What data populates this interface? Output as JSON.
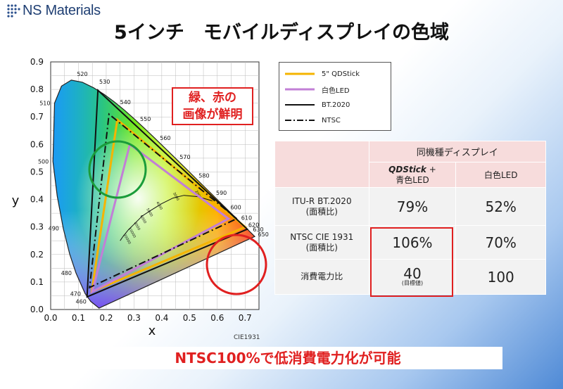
{
  "logo": {
    "name": "NS Materials",
    "icon": "dot-grid-logo-icon"
  },
  "title": "5インチ　モバイルディスプレイの色域",
  "chart_data": {
    "type": "scatter",
    "xlabel": "x",
    "ylabel": "y",
    "xlim": [
      0.0,
      0.75
    ],
    "ylim": [
      0.0,
      0.9
    ],
    "xticks": [
      "0.0",
      "0.1",
      "0.2",
      "0.3",
      "0.4",
      "0.5",
      "0.6",
      "0.7"
    ],
    "yticks": [
      "0.0",
      "0.1",
      "0.2",
      "0.3",
      "0.4",
      "0.5",
      "0.6",
      "0.7",
      "0.8",
      "0.9"
    ],
    "grid": true,
    "annotation": "CIE1931",
    "locus": [
      [
        0.1741,
        0.005
      ],
      [
        0.144,
        0.0297
      ],
      [
        0.1241,
        0.0578
      ],
      [
        0.0913,
        0.1327
      ],
      [
        0.0687,
        0.2007
      ],
      [
        0.0454,
        0.295
      ],
      [
        0.0235,
        0.4127
      ],
      [
        0.0082,
        0.5384
      ],
      [
        0.0139,
        0.7502
      ],
      [
        0.0389,
        0.812
      ],
      [
        0.0743,
        0.8338
      ],
      [
        0.1142,
        0.8262
      ],
      [
        0.1547,
        0.8059
      ],
      [
        0.1929,
        0.7816
      ],
      [
        0.2296,
        0.7543
      ],
      [
        0.2658,
        0.7243
      ],
      [
        0.3016,
        0.6923
      ],
      [
        0.3373,
        0.6589
      ],
      [
        0.3731,
        0.6245
      ],
      [
        0.4087,
        0.5896
      ],
      [
        0.4441,
        0.5547
      ],
      [
        0.4788,
        0.5202
      ],
      [
        0.5125,
        0.4866
      ],
      [
        0.5448,
        0.4544
      ],
      [
        0.5752,
        0.4242
      ],
      [
        0.6029,
        0.3965
      ],
      [
        0.627,
        0.3725
      ],
      [
        0.6482,
        0.3514
      ],
      [
        0.6658,
        0.334
      ],
      [
        0.6915,
        0.3083
      ],
      [
        0.7347,
        0.2653
      ]
    ],
    "wavelength_labels": [
      {
        "nm": "460",
        "x": 0.144,
        "y": 0.0297
      },
      {
        "nm": "470",
        "x": 0.1241,
        "y": 0.0578
      },
      {
        "nm": "480",
        "x": 0.0913,
        "y": 0.1327
      },
      {
        "nm": "490",
        "x": 0.0454,
        "y": 0.295
      },
      {
        "nm": "500",
        "x": 0.0082,
        "y": 0.5384
      },
      {
        "nm": "510",
        "x": 0.0139,
        "y": 0.7502
      },
      {
        "nm": "520",
        "x": 0.0743,
        "y": 0.8338
      },
      {
        "nm": "530",
        "x": 0.1547,
        "y": 0.8059
      },
      {
        "nm": "540",
        "x": 0.2296,
        "y": 0.7543
      },
      {
        "nm": "550",
        "x": 0.3016,
        "y": 0.6923
      },
      {
        "nm": "560",
        "x": 0.3731,
        "y": 0.6245
      },
      {
        "nm": "570",
        "x": 0.4441,
        "y": 0.5547
      },
      {
        "nm": "580",
        "x": 0.5125,
        "y": 0.4866
      },
      {
        "nm": "590",
        "x": 0.5752,
        "y": 0.4242
      },
      {
        "nm": "600",
        "x": 0.627,
        "y": 0.3725
      },
      {
        "nm": "610",
        "x": 0.6658,
        "y": 0.334
      },
      {
        "nm": "620",
        "x": 0.6915,
        "y": 0.3083
      },
      {
        "nm": "630",
        "x": 0.7079,
        "y": 0.292
      },
      {
        "nm": "650",
        "x": 0.726,
        "y": 0.274
      }
    ],
    "planckian": [
      [
        0.6,
        0.39
      ],
      [
        0.53,
        0.41
      ],
      [
        0.48,
        0.415
      ],
      [
        0.44,
        0.405
      ],
      [
        0.4,
        0.385
      ],
      [
        0.36,
        0.36
      ],
      [
        0.33,
        0.34
      ],
      [
        0.3,
        0.31
      ],
      [
        0.28,
        0.29
      ],
      [
        0.26,
        0.265
      ],
      [
        0.25,
        0.25
      ]
    ],
    "cct_labels": [
      {
        "label": "2000",
        "x": 0.52,
        "y": 0.43
      },
      {
        "label": "3000",
        "x": 0.44,
        "y": 0.423
      },
      {
        "label": "4000",
        "x": 0.38,
        "y": 0.39
      },
      {
        "label": "5000",
        "x": 0.345,
        "y": 0.365
      },
      {
        "label": "6000",
        "x": 0.322,
        "y": 0.34
      },
      {
        "label": "8000",
        "x": 0.3,
        "y": 0.315
      },
      {
        "label": "10000",
        "x": 0.28,
        "y": 0.295
      },
      {
        "label": "20000",
        "x": 0.262,
        "y": 0.272
      }
    ],
    "series": [
      {
        "name": "5\" QDStick",
        "color": "#f5b400",
        "style": "solid",
        "points": [
          [
            0.7,
            0.3
          ],
          [
            0.24,
            0.69
          ],
          [
            0.148,
            0.065
          ]
        ]
      },
      {
        "name": "白色LED",
        "color": "#c27fd6",
        "style": "solid",
        "points": [
          [
            0.64,
            0.33
          ],
          [
            0.285,
            0.6
          ],
          [
            0.15,
            0.065
          ]
        ]
      },
      {
        "name": "BT.2020",
        "color": "#111111",
        "style": "solid",
        "points": [
          [
            0.708,
            0.292
          ],
          [
            0.17,
            0.797
          ],
          [
            0.131,
            0.046
          ]
        ]
      },
      {
        "name": "NTSC",
        "color": "#111111",
        "style": "dashdot",
        "points": [
          [
            0.67,
            0.33
          ],
          [
            0.21,
            0.71
          ],
          [
            0.14,
            0.08
          ]
        ]
      }
    ]
  },
  "callout": {
    "line1": "緑、赤の",
    "line2": "画像が鮮明"
  },
  "table": {
    "group_header": "同機種ディスプレイ",
    "col1_bold": "QDStick",
    "col1_rest": " +",
    "col1_line2": "青色LED",
    "col2": "白色LED",
    "rows": [
      {
        "label1": "ITU-R BT.2020",
        "label2": "(面積比)",
        "v1": "79%",
        "v2": "52%"
      },
      {
        "label1": "NTSC CIE 1931",
        "label2": "(面積比)",
        "v1": "106%",
        "v2": "70%"
      },
      {
        "label1": "消費電力比",
        "label2": "",
        "v1": "40",
        "v1_note": "(目標値)",
        "v2": "100"
      }
    ]
  },
  "banner": "NTSC100%で低消費電力化が可能"
}
